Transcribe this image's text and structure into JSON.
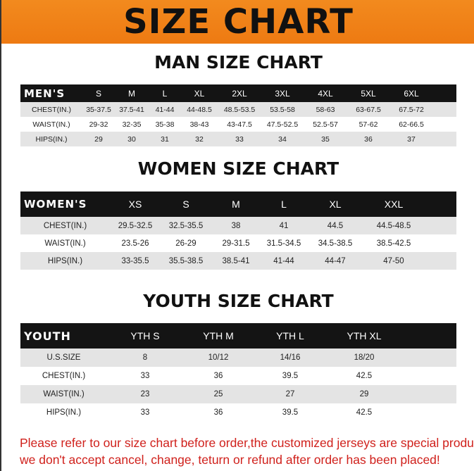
{
  "banner_title": "SIZE CHART",
  "men": {
    "title": "MAN SIZE CHART",
    "header_label": "MEN'S",
    "sizes": [
      "S",
      "M",
      "L",
      "XL",
      "2XL",
      "3XL",
      "4XL",
      "5XL",
      "6XL"
    ],
    "rows": [
      {
        "label": "CHEST(IN.)",
        "values": [
          "35-37.5",
          "37.5-41",
          "41-44",
          "44-48.5",
          "48.5-53.5",
          "53.5-58",
          "58-63",
          "63-67.5",
          "67.5-72"
        ]
      },
      {
        "label": "WAIST(IN.)",
        "values": [
          "29-32",
          "32-35",
          "35-38",
          "38-43",
          "43-47.5",
          "47.5-52.5",
          "52.5-57",
          "57-62",
          "62-66.5"
        ]
      },
      {
        "label": "HIPS(IN.)",
        "values": [
          "29",
          "30",
          "31",
          "32",
          "33",
          "34",
          "35",
          "36",
          "37"
        ]
      }
    ]
  },
  "women": {
    "title": "WOMEN SIZE CHART",
    "header_label": "WOMEN'S",
    "sizes": [
      "XS",
      "S",
      "M",
      "L",
      "XL",
      "XXL"
    ],
    "rows": [
      {
        "label": "CHEST(IN.)",
        "values": [
          "29.5-32.5",
          "32.5-35.5",
          "38",
          "41",
          "44.5",
          "44.5-48.5"
        ]
      },
      {
        "label": "WAIST(IN.)",
        "values": [
          "23.5-26",
          "26-29",
          "29-31.5",
          "31.5-34.5",
          "34.5-38.5",
          "38.5-42.5"
        ]
      },
      {
        "label": "HIPS(IN.)",
        "values": [
          "33-35.5",
          "35.5-38.5",
          "38.5-41",
          "41-44",
          "44-47",
          "47-50"
        ]
      }
    ]
  },
  "youth": {
    "title": "YOUTH SIZE CHART",
    "header_label": "YOUTH",
    "sizes": [
      "YTH S",
      "YTH M",
      "YTH L",
      "YTH XL"
    ],
    "rows": [
      {
        "label": "U.S.SIZE",
        "values": [
          "8",
          "10/12",
          "14/16",
          "18/20"
        ]
      },
      {
        "label": "CHEST(IN.)",
        "values": [
          "33",
          "36",
          "39.5",
          "42.5"
        ]
      },
      {
        "label": "WAIST(IN.)",
        "values": [
          "23",
          "25",
          "27",
          "29"
        ]
      },
      {
        "label": "HIPS(IN.)",
        "values": [
          "33",
          "36",
          "39.5",
          "42.5"
        ]
      }
    ]
  },
  "notice": {
    "line1": "Please refer to our size chart before order,the customized jerseys are special products,",
    "line2": "we don't accept cancel, change, teturn or refund after order has been placed!"
  },
  "colors": {
    "banner": "#f0821a",
    "header_row": "#141414",
    "stripe": "#e4e4e4",
    "notice": "#d0211c"
  }
}
